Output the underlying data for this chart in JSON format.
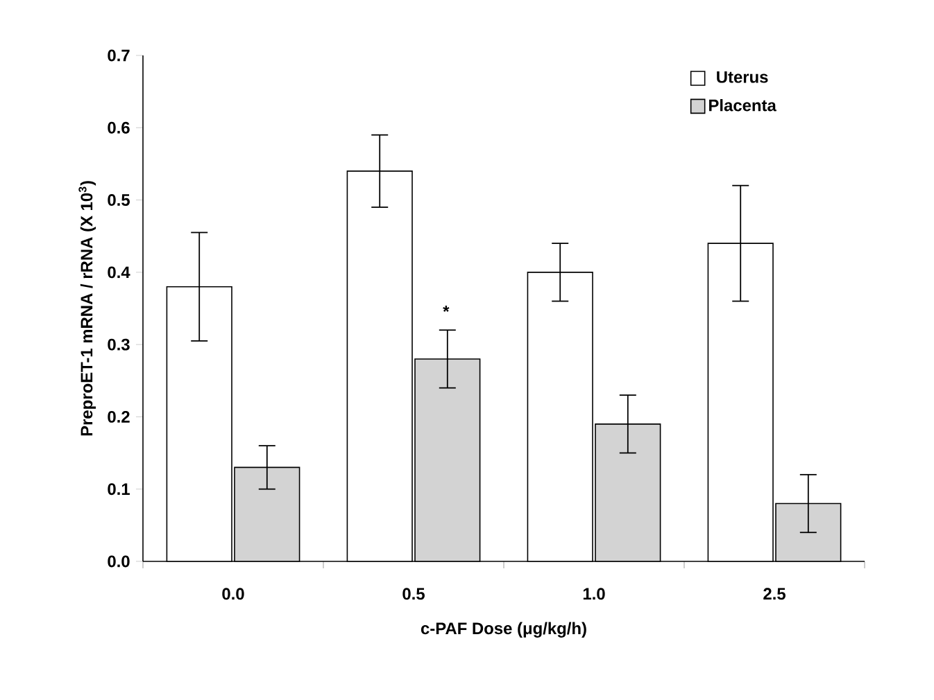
{
  "chart_data": {
    "type": "bar",
    "xlabel": "c-PAF Dose (μg/kg/h)",
    "ylabel": "PreproET-1 mRNA / rRNA (X 10$^{3}$)",
    "categories": [
      "0.0",
      "0.5",
      "1.0",
      "2.5"
    ],
    "series": [
      {
        "name": "Uterus",
        "color": "#ffffff",
        "values": [
          0.38,
          0.54,
          0.4,
          0.44
        ],
        "errors": [
          0.075,
          0.05,
          0.04,
          0.08
        ]
      },
      {
        "name": "Placenta",
        "color": "#d3d3d3",
        "values": [
          0.13,
          0.28,
          0.19,
          0.08
        ],
        "errors": [
          0.03,
          0.04,
          0.04,
          0.04
        ]
      }
    ],
    "ylim": [
      0,
      0.7
    ],
    "yticks": [
      {
        "value": 0,
        "label": "0.0"
      },
      {
        "value": 0.1,
        "label": "0.1"
      },
      {
        "value": 0.2,
        "label": "0.2"
      },
      {
        "value": 0.3,
        "label": "0.3"
      },
      {
        "value": 0.4,
        "label": "0.4"
      },
      {
        "value": 0.5,
        "label": "0.5"
      },
      {
        "value": 0.6,
        "label": "0.6"
      },
      {
        "value": 0.7,
        "label": "0.7"
      }
    ],
    "legend": "top right",
    "grid": false,
    "annotations": [
      {
        "text": "*",
        "x": "0.5",
        "y": 0.33
      }
    ]
  }
}
